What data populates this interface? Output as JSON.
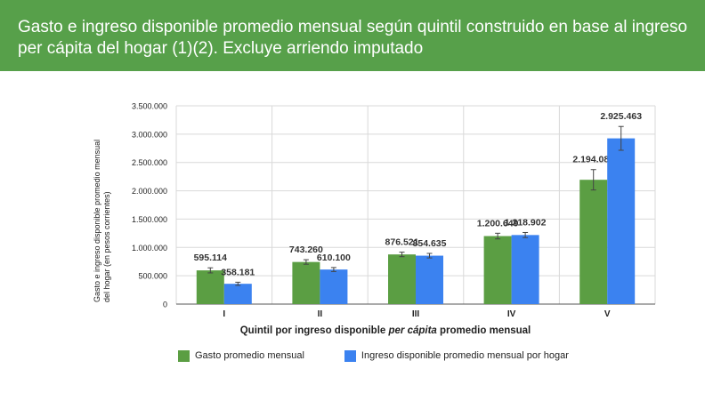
{
  "header": {
    "title": "Gasto e ingreso disponible promedio mensual según quintil construido en base al ingreso per cápita del hogar (1)(2). Excluye arriendo imputado"
  },
  "colors": {
    "header_bg": "#57a04a",
    "gasto": "#5b9e43",
    "ingreso": "#3b82f0",
    "grid": "#d9d9d9",
    "axis_text": "#222222"
  },
  "chart_data": {
    "type": "bar",
    "categories": [
      "I",
      "II",
      "III",
      "IV",
      "V"
    ],
    "series": [
      {
        "name": "Gasto promedio mensual",
        "values": [
          595114,
          743260,
          876521,
          1200649,
          2194080
        ],
        "labels": [
          "595.114",
          "743.260",
          "876.521",
          "1.200.649",
          "2.194.080"
        ],
        "error": [
          45000,
          40000,
          40000,
          50000,
          180000
        ]
      },
      {
        "name": "Ingreso disponible promedio mensual por hogar",
        "values": [
          358181,
          610100,
          854635,
          1218902,
          2925463
        ],
        "labels": [
          "358.181",
          "610.100",
          "854.635",
          "1.218.902",
          "2.925.463"
        ],
        "error": [
          28000,
          35000,
          40000,
          45000,
          210000
        ]
      }
    ],
    "ylim": [
      0,
      3500000
    ],
    "yticks": [
      0,
      500000,
      1000000,
      1500000,
      2000000,
      2500000,
      3000000,
      3500000
    ],
    "ytick_labels": [
      "0",
      "500.000",
      "1.000.000",
      "1.500.000",
      "2.000.000",
      "2.500.000",
      "3.000.000",
      "3.500.000"
    ],
    "ylabel_line1": "Gasto e ingreso disponible promedio mensual",
    "ylabel_line2": "del hogar (en pesos corrientes)",
    "xlabel_pre": "Quintil por ingreso disponible ",
    "xlabel_italic": "per cápita",
    "xlabel_post": " promedio mensual",
    "grid": true,
    "legend_position": "bottom"
  }
}
